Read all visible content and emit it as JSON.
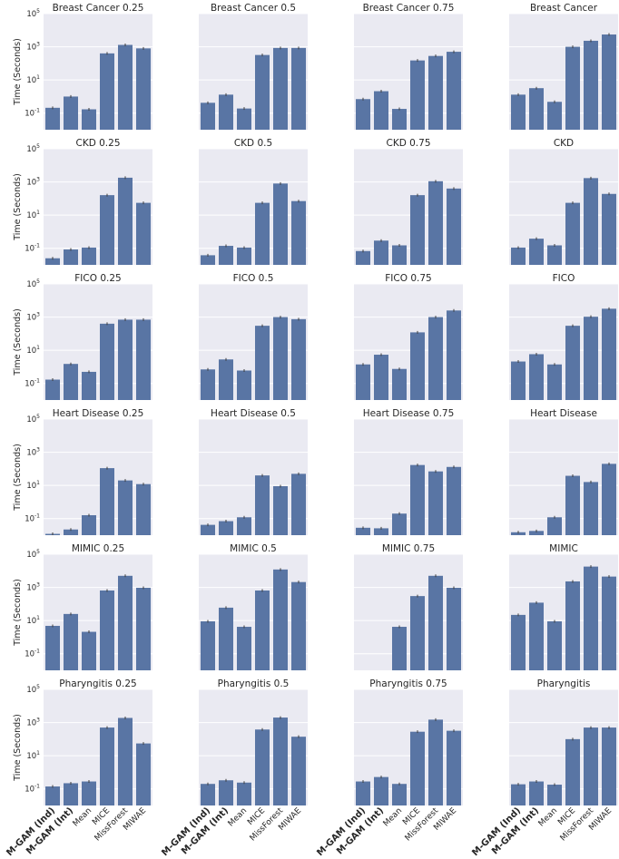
{
  "chart_data": {
    "type": "bar",
    "layout": "grid 6 rows x 4 columns of small-multiple bar charts, shared y axis per row",
    "yscale": "log",
    "ylabel": "Time (Seconds)",
    "ylim": [
      0.01,
      100000
    ],
    "yticks": [
      {
        "base": "10",
        "exp": "-1",
        "value": 0.1
      },
      {
        "base": "10",
        "exp": "1",
        "value": 10
      },
      {
        "base": "10",
        "exp": "3",
        "value": 1000
      },
      {
        "base": "10",
        "exp": "5",
        "value": 100000
      }
    ],
    "grid": true,
    "bar_color": "#5975a4",
    "background_color": "#eaeaf2",
    "categories": [
      "M-GAM (Ind)",
      "M-GAM (Int)",
      "Mean",
      "MICE",
      "MissForest",
      "MIWAE"
    ],
    "bold_categories": [
      "M-GAM (Ind)",
      "M-GAM (Int)"
    ],
    "panels": [
      {
        "title": "Breast Cancer 0.25",
        "values": [
          0.21,
          1.0,
          0.17,
          400,
          1300,
          800
        ]
      },
      {
        "title": "Breast Cancer 0.5",
        "values": [
          0.42,
          1.3,
          0.19,
          320,
          850,
          850
        ]
      },
      {
        "title": "Breast Cancer 0.75",
        "values": [
          0.7,
          2.1,
          0.18,
          150,
          280,
          500
        ]
      },
      {
        "title": "Breast Cancer",
        "values": [
          1.3,
          3.2,
          0.48,
          1000,
          2300,
          5500
        ]
      },
      {
        "title": "CKD 0.25",
        "values": [
          0.025,
          0.085,
          0.11,
          160,
          1800,
          55
        ]
      },
      {
        "title": "CKD 0.5",
        "values": [
          0.038,
          0.14,
          0.11,
          55,
          800,
          70
        ]
      },
      {
        "title": "CKD 0.75",
        "values": [
          0.068,
          0.29,
          0.15,
          160,
          1100,
          400
        ]
      },
      {
        "title": "CKD",
        "values": [
          0.11,
          0.38,
          0.15,
          55,
          1700,
          190
        ]
      },
      {
        "title": "FICO 0.25",
        "values": [
          0.17,
          1.5,
          0.5,
          400,
          700,
          700
        ]
      },
      {
        "title": "FICO 0.5",
        "values": [
          0.7,
          2.8,
          0.6,
          300,
          1000,
          750
        ]
      },
      {
        "title": "FICO 0.75",
        "values": [
          1.4,
          5.4,
          0.75,
          120,
          1000,
          2500
        ]
      },
      {
        "title": "FICO",
        "values": [
          2.1,
          5.8,
          1.4,
          300,
          1050,
          3200
        ]
      },
      {
        "title": "Heart Disease 0.25",
        "values": [
          0.012,
          0.022,
          0.16,
          110,
          20,
          12
        ]
      },
      {
        "title": "Heart Disease 0.5",
        "values": [
          0.042,
          0.07,
          0.12,
          40,
          9,
          50
        ]
      },
      {
        "title": "Heart Disease 0.75",
        "values": [
          0.028,
          0.026,
          0.2,
          170,
          70,
          130
        ]
      },
      {
        "title": "Heart Disease",
        "values": [
          0.015,
          0.018,
          0.12,
          38,
          16,
          200
        ]
      },
      {
        "title": "MIMIC 0.25",
        "values": [
          4.8,
          25,
          2.1,
          650,
          5000,
          950
        ]
      },
      {
        "title": "MIMIC 0.5",
        "values": [
          9,
          60,
          4.2,
          650,
          12000,
          2100
        ]
      },
      {
        "title": "MIMIC 0.75",
        "values": [
          null,
          null,
          4.2,
          300,
          5000,
          950
        ]
      },
      {
        "title": "MIMIC",
        "values": [
          22,
          120,
          9,
          2300,
          18000,
          4500
        ]
      },
      {
        "title": "Pharyngitis 0.25",
        "values": [
          0.14,
          0.22,
          0.28,
          500,
          1900,
          55
        ]
      },
      {
        "title": "Pharyngitis 0.5",
        "values": [
          0.2,
          0.33,
          0.24,
          380,
          2000,
          140
        ]
      },
      {
        "title": "Pharyngitis 0.75",
        "values": [
          0.28,
          0.52,
          0.2,
          280,
          1500,
          320
        ]
      },
      {
        "title": "Pharyngitis",
        "values": [
          0.19,
          0.28,
          0.18,
          100,
          500,
          500
        ]
      }
    ]
  }
}
